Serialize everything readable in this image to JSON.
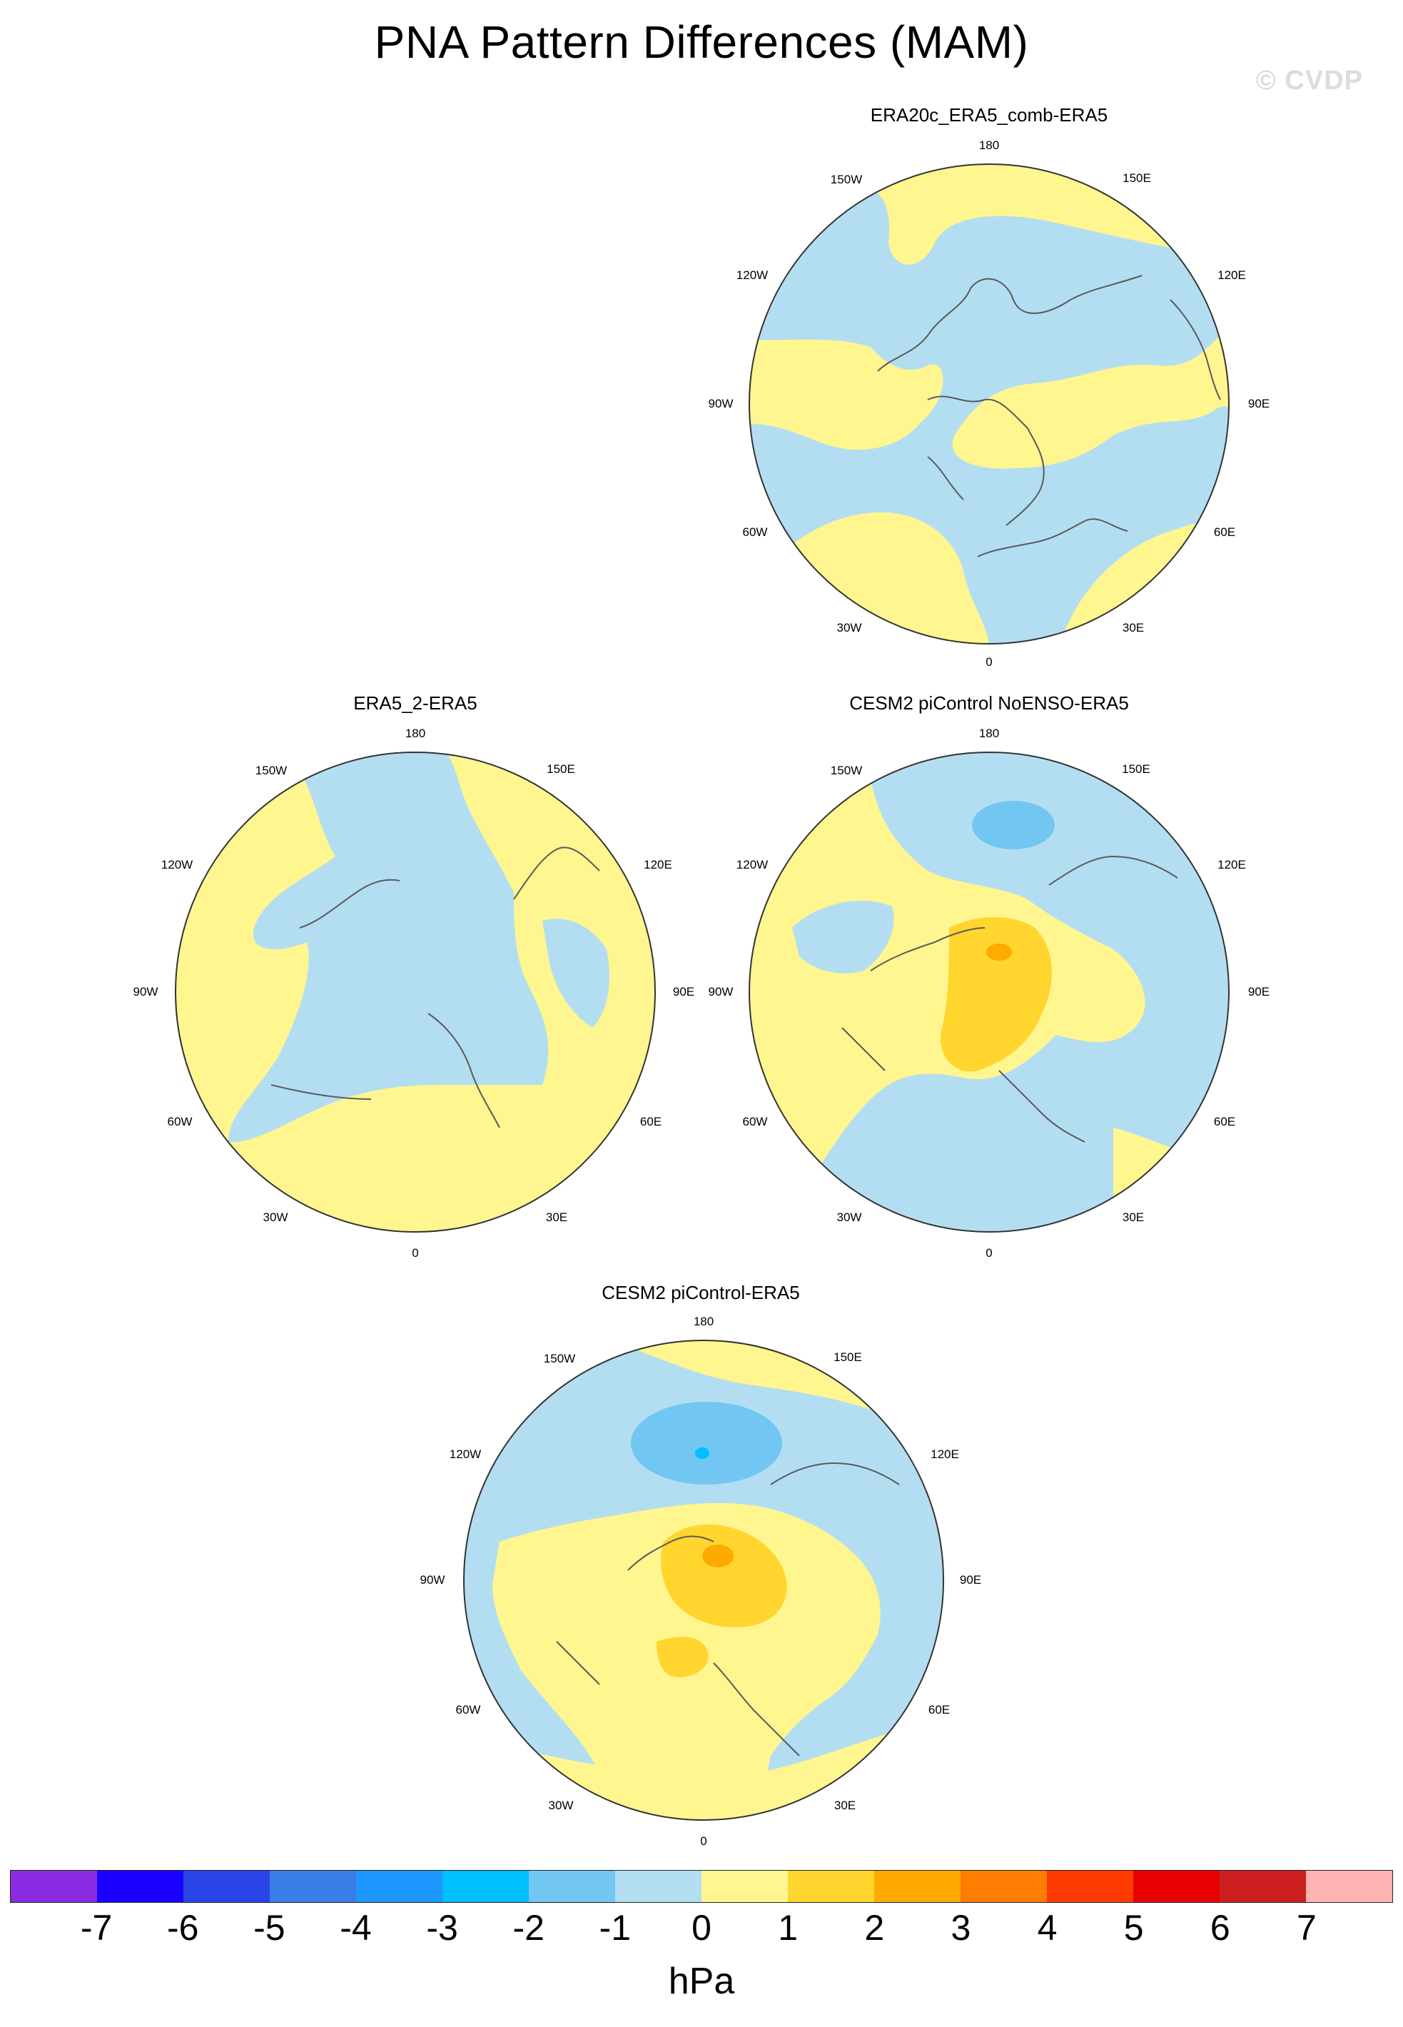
{
  "title": "PNA Pattern Differences (MAM)",
  "watermark": "© CVDP",
  "panels": [
    {
      "title": "ERA20c_ERA5_comb-ERA5"
    },
    {
      "title": "ERA5_2-ERA5"
    },
    {
      "title": "CESM2 piControl NoENSO-ERA5"
    },
    {
      "title": "CESM2 piControl-ERA5"
    }
  ],
  "lon_labels": [
    "180",
    "150E",
    "120E",
    "90E",
    "60E",
    "30E",
    "0",
    "30W",
    "60W",
    "90W",
    "120W",
    "150W"
  ],
  "colorbar": {
    "units": "hPa",
    "ticks": [
      "-7",
      "-6",
      "-5",
      "-4",
      "-3",
      "-2",
      "-1",
      "0",
      "1",
      "2",
      "3",
      "4",
      "5",
      "6",
      "7"
    ],
    "colors": [
      "#8a2be2",
      "#1a00ff",
      "#2a45e6",
      "#3a7ce8",
      "#1e96ff",
      "#00bfff",
      "#72c6f2",
      "#b3def2",
      "#fff68f",
      "#ffd52e",
      "#ffaa00",
      "#ff7d00",
      "#ff3a00",
      "#e60000",
      "#cc1e1e",
      "#ffb4b4"
    ]
  },
  "legend_colors": {
    "neg_0_1": "#b3def2",
    "neg_1_2": "#72c6f2",
    "neg_2_3": "#00bfff",
    "pos_0_1": "#fff68f",
    "pos_1_2": "#ffd52e",
    "pos_2_3": "#ffaa00"
  }
}
